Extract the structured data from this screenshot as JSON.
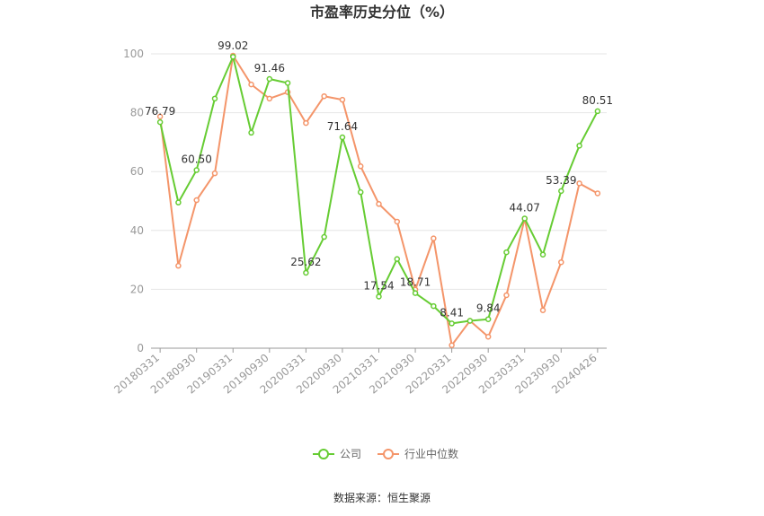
{
  "chart_data": {
    "type": "line",
    "title": "市盈率历史分位（%）",
    "xlabel": "",
    "ylabel": "",
    "ylim": [
      0,
      100
    ],
    "yticks": [
      0,
      20,
      40,
      60,
      80,
      100
    ],
    "x": [
      "20180331",
      "20180630",
      "20180930",
      "20181231",
      "20190331",
      "20190630",
      "20190930",
      "20191231",
      "20200331",
      "20200630",
      "20200930",
      "20201231",
      "20210331",
      "20210630",
      "20210930",
      "20211231",
      "20220331",
      "20220630",
      "20220930",
      "20221231",
      "20230331",
      "20230630",
      "20230930",
      "20231231",
      "20240426"
    ],
    "x_tick_labels": [
      "20180331",
      "20180930",
      "20190331",
      "20190930",
      "20200331",
      "20200930",
      "20210331",
      "20210930",
      "20220331",
      "20220930",
      "20230331",
      "20230930",
      "20240426"
    ],
    "series": [
      {
        "name": "公司",
        "color": "#66cc33",
        "values": [
          76.79,
          49.5,
          60.5,
          84.8,
          99.02,
          73.2,
          91.46,
          90.1,
          25.62,
          37.8,
          71.64,
          53.0,
          17.54,
          30.3,
          18.71,
          14.3,
          8.41,
          9.3,
          9.84,
          32.6,
          44.07,
          31.8,
          53.39,
          68.8,
          80.51
        ],
        "data_labels": {
          "0": "76.79",
          "2": "60.50",
          "4": "99.02",
          "6": "91.46",
          "8": "25.62",
          "10": "71.64",
          "12": "17.54",
          "14": "18.71",
          "16": "8.41",
          "18": "9.84",
          "20": "44.07",
          "22": "53.39",
          "24": "80.51"
        }
      },
      {
        "name": "行业中位数",
        "color": "#f4956a",
        "values": [
          78.7,
          28.0,
          50.3,
          59.4,
          99.4,
          89.6,
          84.8,
          87.0,
          76.5,
          85.6,
          84.4,
          61.8,
          49.0,
          43.0,
          19.9,
          37.3,
          1.0,
          9.3,
          3.9,
          18.0,
          44.0,
          12.9,
          29.2,
          56.0,
          52.6
        ]
      }
    ],
    "legend_position": "bottom",
    "grid": true
  },
  "source": "数据来源：恒生聚源"
}
